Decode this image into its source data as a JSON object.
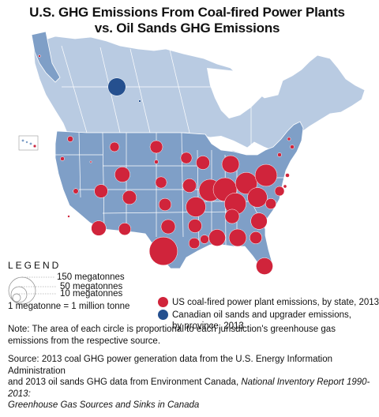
{
  "title": {
    "line1": "U.S. GHG Emissions From Coal-fired Power Plants",
    "line2": "vs. Oil Sands GHG Emissions"
  },
  "colors": {
    "us_land": "#7f9fc7",
    "canada_land": "#b9cbe2",
    "water": "#ffffff",
    "border": "#ffffff",
    "coal_circle": "#d0243b",
    "oil_sands_circle": "#25508f"
  },
  "legend": {
    "title": "LEGEND",
    "sizes": [
      "150 megatonnes",
      "50 megatonnes",
      "10 megatonnes"
    ],
    "conversion": "1 megatonne = 1 million tonne",
    "key": {
      "coal": "US coal-fired power plant emissions, by state, 2013",
      "oil_line1": "Canadian oil sands and upgrader emissions,",
      "oil_line2": "by province, 2013"
    }
  },
  "note": "Note: The area of each circle is proportional to each jurisdiction's greenhouse gas emissions from the respective source.",
  "source": {
    "line1": "Source: 2013 coal GHG power generation data from the U.S. Energy Information Administration",
    "line2_plain": "and 2013 oil sands GHG data from Environment Canada, ",
    "line2_italic": "National Inventory Report 1990-2013:",
    "line3_italic": "Greenhouse Gas Sources and Sinks in Canada"
  },
  "map_data": {
    "coal_circles_by_state_megatonnes": [
      {
        "state": "WA",
        "value": 6
      },
      {
        "state": "OR",
        "value": 3
      },
      {
        "state": "MT",
        "value": 17
      },
      {
        "state": "ND",
        "value": 30
      },
      {
        "state": "MN",
        "value": 24
      },
      {
        "state": "WI",
        "value": 34
      },
      {
        "state": "MI",
        "value": 56
      },
      {
        "state": "ID",
        "value": 0.1
      },
      {
        "state": "WY",
        "value": 43
      },
      {
        "state": "SD",
        "value": 3
      },
      {
        "state": "NE",
        "value": 24
      },
      {
        "state": "IA",
        "value": 35
      },
      {
        "state": "IL",
        "value": 91
      },
      {
        "state": "IN",
        "value": 104
      },
      {
        "state": "OH",
        "value": 88
      },
      {
        "state": "PA",
        "value": 90
      },
      {
        "state": "NY",
        "value": 3
      },
      {
        "state": "MA",
        "value": 3
      },
      {
        "state": "NH",
        "value": 2
      },
      {
        "state": "NV",
        "value": 5
      },
      {
        "state": "UT",
        "value": 33
      },
      {
        "state": "CO",
        "value": 36
      },
      {
        "state": "KS",
        "value": 29
      },
      {
        "state": "MO",
        "value": 73
      },
      {
        "state": "KY",
        "value": 87
      },
      {
        "state": "WV",
        "value": 72
      },
      {
        "state": "VA",
        "value": 21
      },
      {
        "state": "MD",
        "value": 17
      },
      {
        "state": "DE",
        "value": 2
      },
      {
        "state": "NJ",
        "value": 3
      },
      {
        "state": "CA",
        "value": 1
      },
      {
        "state": "AZ",
        "value": 41
      },
      {
        "state": "NM",
        "value": 28
      },
      {
        "state": "OK",
        "value": 38
      },
      {
        "state": "AR",
        "value": 34
      },
      {
        "state": "TN",
        "value": 38
      },
      {
        "state": "NC",
        "value": 50
      },
      {
        "state": "SC",
        "value": 28
      },
      {
        "state": "GA",
        "value": 56
      },
      {
        "state": "AL",
        "value": 52
      },
      {
        "state": "MS",
        "value": 14
      },
      {
        "state": "LA",
        "value": 22
      },
      {
        "state": "TX",
        "value": 148
      },
      {
        "state": "FL",
        "value": 52
      },
      {
        "state": "AK",
        "value": 1
      },
      {
        "state": "HI",
        "value": 1.5
      }
    ],
    "oil_sands_circles_by_province_megatonnes": [
      {
        "province": "AB",
        "value": 59
      },
      {
        "province": "SK",
        "value": 1
      }
    ]
  }
}
